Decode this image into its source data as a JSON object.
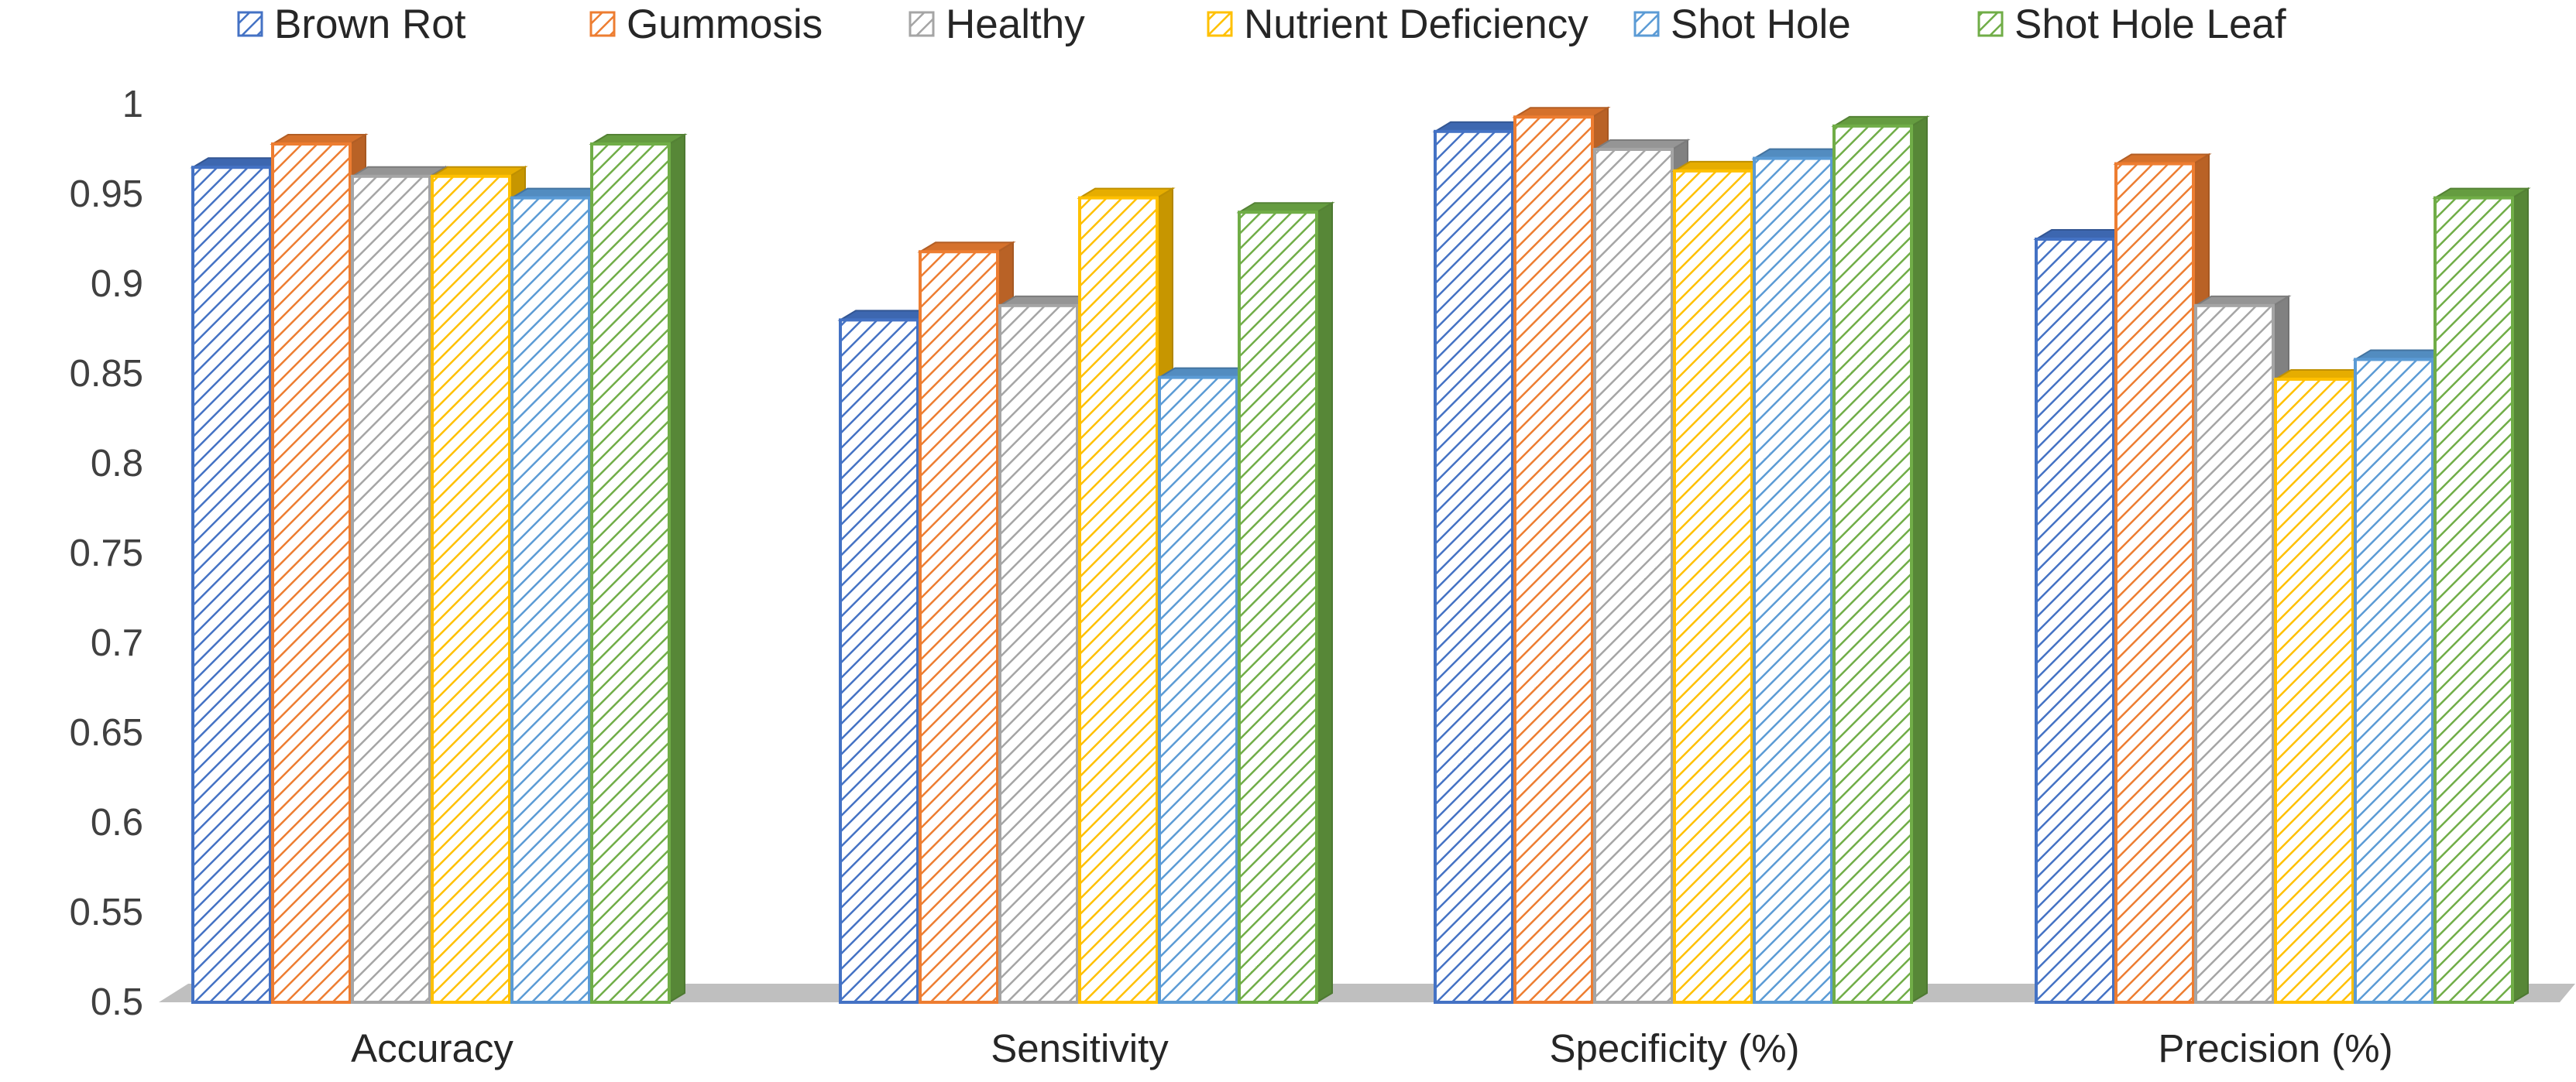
{
  "chart_data": {
    "type": "bar",
    "style": "3d-clustered-hatched",
    "categories": [
      "Accuracy",
      "Sensitivity",
      "Specificity (%)",
      "Precision (%)"
    ],
    "series": [
      {
        "name": "Brown Rot",
        "color": "#4472C4",
        "values": [
          0.965,
          0.88,
          0.985,
          0.925
        ]
      },
      {
        "name": "Gummosis",
        "color": "#ED7D31",
        "values": [
          0.978,
          0.918,
          0.993,
          0.967
        ]
      },
      {
        "name": "Healthy",
        "color": "#A5A5A5",
        "values": [
          0.96,
          0.888,
          0.975,
          0.888
        ]
      },
      {
        "name": "Nutrient Deficiency",
        "color": "#FFC000",
        "values": [
          0.96,
          0.948,
          0.963,
          0.847
        ]
      },
      {
        "name": "Shot Hole",
        "color": "#5B9BD5",
        "values": [
          0.948,
          0.848,
          0.97,
          0.858
        ]
      },
      {
        "name": "Shot Hole Leaf",
        "color": "#70AD47",
        "values": [
          0.978,
          0.94,
          0.988,
          0.948
        ]
      }
    ],
    "ylim": [
      0.5,
      1
    ],
    "yticks": [
      "0.5",
      "0.55",
      "0.6",
      "0.65",
      "0.7",
      "0.75",
      "0.8",
      "0.85",
      "0.9",
      "0.95",
      "1"
    ],
    "grid": false,
    "legend": "top",
    "title": "",
    "xlabel": "",
    "ylabel": ""
  }
}
